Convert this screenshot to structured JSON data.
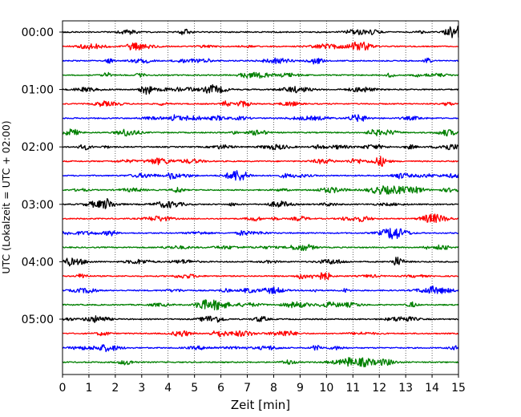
{
  "chart_data": {
    "type": "line",
    "title": "",
    "xlabel": "Zeit  [min]",
    "ylabel": "UTC (Lokalzeit = UTC + 02:00)",
    "xlim": [
      0,
      15
    ],
    "x_ticks": [
      "0",
      "1",
      "2",
      "3",
      "4",
      "5",
      "6",
      "7",
      "8",
      "9",
      "10",
      "11",
      "12",
      "13",
      "14",
      "15"
    ],
    "y_ticks": [
      "00:00",
      "01:00",
      "02:00",
      "03:00",
      "04:00",
      "05:00"
    ],
    "trace_minutes": 15,
    "trace_count": 24,
    "trace_colors": [
      "#000000",
      "#ff0000",
      "#0000ff",
      "#008000"
    ],
    "grid": "vertical dotted at each minute",
    "legend": "none"
  }
}
